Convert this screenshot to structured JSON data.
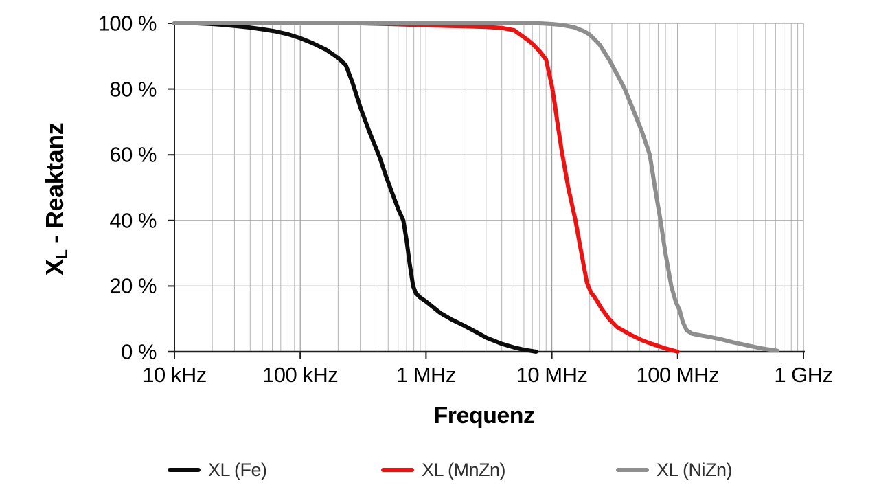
{
  "chart_data": {
    "type": "line",
    "title": "",
    "xlabel": "Frequenz",
    "ylabel": "XL - Reaktanz",
    "ylabel_parts": {
      "symbol": "X",
      "subscript": "L",
      "rest": " - Reaktanz"
    },
    "x_scale": "log",
    "xlim": [
      10000,
      1000000000
    ],
    "ylim": [
      0,
      100
    ],
    "grid": true,
    "legend_position": "bottom",
    "x_ticks": [
      {
        "value": 10000,
        "label": "10 kHz"
      },
      {
        "value": 100000,
        "label": "100 kHz"
      },
      {
        "value": 1000000,
        "label": "1 MHz"
      },
      {
        "value": 10000000,
        "label": "10 MHz"
      },
      {
        "value": 100000000,
        "label": "100 MHz"
      },
      {
        "value": 1000000000,
        "label": "1 GHz"
      }
    ],
    "y_ticks": [
      {
        "value": 0,
        "label": "0 %"
      },
      {
        "value": 20,
        "label": "20 %"
      },
      {
        "value": 40,
        "label": "40 %"
      },
      {
        "value": 60,
        "label": "60 %"
      },
      {
        "value": 80,
        "label": "80 %"
      },
      {
        "value": 100,
        "label": "100 %"
      }
    ],
    "series": [
      {
        "name": "XL (Fe)",
        "color": "#0c0c0c",
        "points_hz_percent": [
          [
            10000,
            100
          ],
          [
            15000,
            100
          ],
          [
            20000,
            99.8
          ],
          [
            25000,
            99.5
          ],
          [
            32000,
            99.1
          ],
          [
            40000,
            98.7
          ],
          [
            50000,
            98.2
          ],
          [
            63000,
            97.6
          ],
          [
            80000,
            96.7
          ],
          [
            100000,
            95.5
          ],
          [
            125000,
            94
          ],
          [
            160000,
            92
          ],
          [
            200000,
            89.5
          ],
          [
            230000,
            87.3
          ],
          [
            260000,
            82
          ],
          [
            300000,
            74.5
          ],
          [
            350000,
            67.5
          ],
          [
            400000,
            62
          ],
          [
            430000,
            59
          ],
          [
            480000,
            53.5
          ],
          [
            530000,
            49
          ],
          [
            600000,
            43.5
          ],
          [
            660000,
            40
          ],
          [
            700000,
            34
          ],
          [
            740000,
            27
          ],
          [
            790000,
            20
          ],
          [
            830000,
            17.8
          ],
          [
            900000,
            16.5
          ],
          [
            1000000,
            15.3
          ],
          [
            1300000,
            11.8
          ],
          [
            1600000,
            9.8
          ],
          [
            2000000,
            8
          ],
          [
            2500000,
            6
          ],
          [
            3000000,
            4.3
          ],
          [
            4000000,
            2.4
          ],
          [
            5000000,
            1.3
          ],
          [
            6000000,
            0.6
          ],
          [
            7500000,
            0
          ]
        ]
      },
      {
        "name": "XL (MnZn)",
        "color": "#ec1313",
        "points_hz_percent": [
          [
            10000,
            100
          ],
          [
            100000,
            100
          ],
          [
            300000,
            100
          ],
          [
            500000,
            99.8
          ],
          [
            700000,
            99.6
          ],
          [
            1000000,
            99.4
          ],
          [
            1500000,
            99.2
          ],
          [
            2000000,
            99.1
          ],
          [
            3000000,
            98.9
          ],
          [
            4000000,
            98.6
          ],
          [
            5000000,
            97.9
          ],
          [
            6300000,
            95.2
          ],
          [
            7000000,
            93.8
          ],
          [
            8000000,
            91.5
          ],
          [
            9000000,
            89
          ],
          [
            10000000,
            81
          ],
          [
            10500000,
            76
          ],
          [
            11000000,
            70.5
          ],
          [
            12000000,
            61
          ],
          [
            13500000,
            50
          ],
          [
            15400000,
            40
          ],
          [
            17000000,
            31
          ],
          [
            19000000,
            21
          ],
          [
            20500000,
            18
          ],
          [
            22000000,
            16.5
          ],
          [
            25000000,
            13
          ],
          [
            28500000,
            10
          ],
          [
            33000000,
            7.5
          ],
          [
            43000000,
            5
          ],
          [
            52000000,
            3.5
          ],
          [
            62000000,
            2.4
          ],
          [
            80000000,
            1
          ],
          [
            100000000,
            0
          ]
        ]
      },
      {
        "name": "XL (NiZn)",
        "color": "#8e8e8e",
        "points_hz_percent": [
          [
            10000,
            100
          ],
          [
            1000000,
            100
          ],
          [
            5000000,
            100
          ],
          [
            8000000,
            100
          ],
          [
            10000000,
            99.8
          ],
          [
            12000000,
            99.5
          ],
          [
            15000000,
            98.8
          ],
          [
            18000000,
            97.6
          ],
          [
            20000000,
            96.6
          ],
          [
            24000000,
            93.5
          ],
          [
            28500000,
            89
          ],
          [
            33000000,
            84.5
          ],
          [
            38000000,
            80
          ],
          [
            45000000,
            73
          ],
          [
            52000000,
            67
          ],
          [
            60000000,
            60
          ],
          [
            66000000,
            50
          ],
          [
            73000000,
            40
          ],
          [
            80000000,
            30
          ],
          [
            89000000,
            20
          ],
          [
            97000000,
            15
          ],
          [
            104000000,
            12.5
          ],
          [
            110000000,
            9
          ],
          [
            118000000,
            6.5
          ],
          [
            130000000,
            5.5
          ],
          [
            150000000,
            5
          ],
          [
            180000000,
            4.5
          ],
          [
            220000000,
            3.8
          ],
          [
            280000000,
            2.8
          ],
          [
            350000000,
            2
          ],
          [
            450000000,
            1.1
          ],
          [
            530000000,
            0.7
          ],
          [
            620000000,
            0.3
          ]
        ]
      }
    ]
  },
  "colors": {
    "background": "#ffffff",
    "grid_major": "#9e9e9e",
    "grid_minor": "#b5b5b5",
    "axis": "#1f1f1f",
    "tick_text": "#000000",
    "legend_text": "#2e2e2e"
  }
}
